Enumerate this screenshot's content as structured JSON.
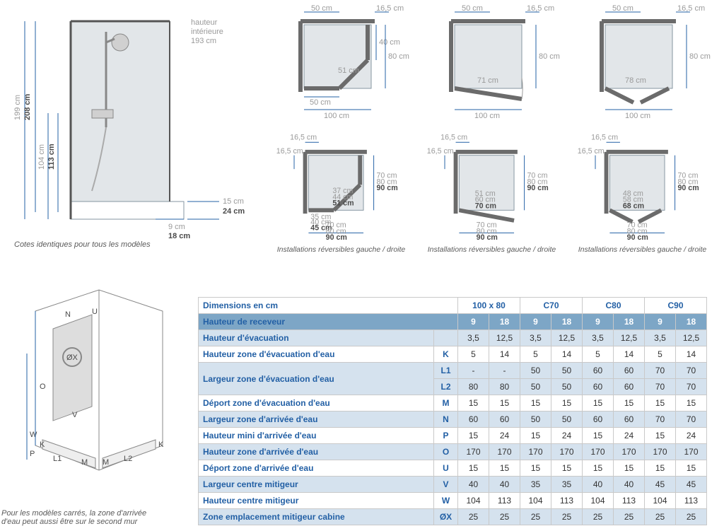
{
  "colors": {
    "blue": "#2360a5",
    "header_blue": "#7da6c6",
    "row_blue": "#d5e2ee",
    "gray_text": "#9a9a9a",
    "dark_text": "#4a4a4a",
    "border": "#c9c9c9",
    "panel": "#e2e6e9",
    "frame": "#6b6b6b"
  },
  "elevation": {
    "caption": "Cotes identiques pour tous les modèles",
    "interior_label_l1": "hauteur",
    "interior_label_l2": "intérieure",
    "interior_label_l3": "193 cm",
    "h_total_in": "199 cm",
    "h_total_out": "208 cm",
    "h_mid_in": "104 cm",
    "h_mid_out": "113 cm",
    "base_top_in": "15 cm",
    "base_top_out": "24 cm",
    "base_bot_in": "9 cm",
    "base_bot_out": "18 cm"
  },
  "plans": {
    "caption": "Installations réversibles gauche / droite",
    "top": [
      {
        "top_dim": "50 cm",
        "top_side": "16,5 cm",
        "right_small": "40 cm",
        "right_big": "80 cm",
        "diag": "51 cm",
        "bot_small": "50 cm",
        "bot_big": "100 cm"
      },
      {
        "top_dim": "50 cm",
        "top_side": "16,5 cm",
        "right_big": "80 cm",
        "diag": "71 cm",
        "bot_big": "100 cm"
      },
      {
        "top_dim": "50 cm",
        "top_side": "16,5 cm",
        "right_big": "80 cm",
        "diag": "78 cm",
        "bot_big": "100 cm"
      }
    ],
    "bottom": [
      {
        "tl1": "16,5 cm",
        "tl2": "16,5 cm",
        "diag1": "37 cm",
        "diag2": "44 cm",
        "diag3": "51 cm",
        "bot_small1": "35 cm",
        "bot_small2": "40 cm",
        "bot_small3": "45 cm",
        "right1": "70 cm",
        "right2": "80 cm",
        "right3": "90 cm",
        "bot1": "70 cm",
        "bot2": "80 cm",
        "bot3": "90 cm"
      },
      {
        "tl1": "16,5 cm",
        "tl2": "16,5 cm",
        "diag1": "51 cm",
        "diag2": "60 cm",
        "diag3": "70 cm",
        "right1": "70 cm",
        "right2": "80 cm",
        "right3": "90 cm",
        "bot1": "70 cm",
        "bot2": "80 cm",
        "bot3": "90 cm"
      },
      {
        "tl1": "16,5 cm",
        "tl2": "16,5 cm",
        "diag1": "48 cm",
        "diag2": "58 cm",
        "diag3": "68 cm",
        "right1": "70 cm",
        "right2": "80 cm",
        "right3": "90 cm",
        "bot1": "70 cm",
        "bot2": "80 cm",
        "bot3": "90 cm"
      }
    ]
  },
  "iso": {
    "caption_l1": "Pour les modèles carrés, la zone d'arrivée",
    "caption_l2": "d'eau peut aussi être sur le second mur",
    "labels": {
      "N": "N",
      "U": "U",
      "O": "O",
      "OX": "ØX",
      "W": "W",
      "V": "V",
      "P": "P",
      "K": "K",
      "L1": "L1",
      "L2": "L2",
      "M": "M"
    }
  },
  "table": {
    "title": "Dimensions en cm",
    "model_headers": [
      "100 x 80",
      "C70",
      "C80",
      "C90"
    ],
    "receiver_label": "Hauteur de receveur",
    "receiver_vals": [
      "9",
      "18",
      "9",
      "18",
      "9",
      "18",
      "9",
      "18"
    ],
    "rows": [
      {
        "label": "Hauteur d'évacuation",
        "key": "",
        "vals": [
          "3,5",
          "12,5",
          "3,5",
          "12,5",
          "3,5",
          "12,5",
          "3,5",
          "12,5"
        ],
        "shade": "blue"
      },
      {
        "label": "Hauteur zone d'évacuation d'eau",
        "key": "K",
        "vals": [
          "5",
          "14",
          "5",
          "14",
          "5",
          "14",
          "5",
          "14"
        ],
        "shade": "white"
      },
      {
        "label": "Largeur zone d'évacuation d'eau",
        "key": "L1",
        "vals": [
          "-",
          "-",
          "50",
          "50",
          "60",
          "60",
          "70",
          "70"
        ],
        "shade": "blue",
        "rowspan_label": 2
      },
      {
        "label": "",
        "key": "L2",
        "vals": [
          "80",
          "80",
          "50",
          "50",
          "60",
          "60",
          "70",
          "70"
        ],
        "shade": "blue",
        "skip_label": true
      },
      {
        "label": "Déport zone d'évacuation d'eau",
        "key": "M",
        "vals": [
          "15",
          "15",
          "15",
          "15",
          "15",
          "15",
          "15",
          "15"
        ],
        "shade": "white"
      },
      {
        "label": "Largeur zone d'arrivée d'eau",
        "key": "N",
        "vals": [
          "60",
          "60",
          "50",
          "50",
          "60",
          "60",
          "70",
          "70"
        ],
        "shade": "blue"
      },
      {
        "label": "Hauteur mini d'arrivée d'eau",
        "key": "P",
        "vals": [
          "15",
          "24",
          "15",
          "24",
          "15",
          "24",
          "15",
          "24"
        ],
        "shade": "white"
      },
      {
        "label": "Hauteur zone d'arrivée d'eau",
        "key": "O",
        "vals": [
          "170",
          "170",
          "170",
          "170",
          "170",
          "170",
          "170",
          "170"
        ],
        "shade": "blue"
      },
      {
        "label": "Déport zone d'arrivée d'eau",
        "key": "U",
        "vals": [
          "15",
          "15",
          "15",
          "15",
          "15",
          "15",
          "15",
          "15"
        ],
        "shade": "white"
      },
      {
        "label": "Largeur centre mitigeur",
        "key": "V",
        "vals": [
          "40",
          "40",
          "35",
          "35",
          "40",
          "40",
          "45",
          "45"
        ],
        "shade": "blue"
      },
      {
        "label": "Hauteur centre mitigeur",
        "key": "W",
        "vals": [
          "104",
          "113",
          "104",
          "113",
          "104",
          "113",
          "104",
          "113"
        ],
        "shade": "white"
      },
      {
        "label": "Zone emplacement mitigeur cabine",
        "key": "ØX",
        "vals": [
          "25",
          "25",
          "25",
          "25",
          "25",
          "25",
          "25",
          "25"
        ],
        "shade": "blue"
      }
    ]
  }
}
